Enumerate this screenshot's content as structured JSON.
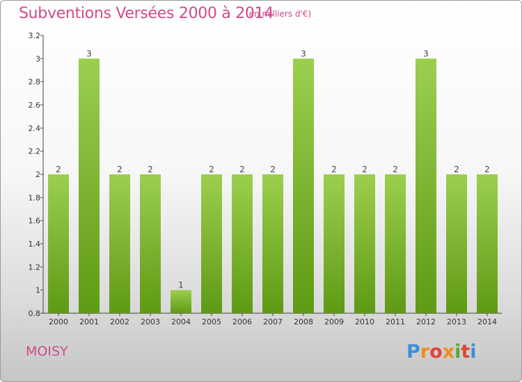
{
  "header": {
    "title": "Subventions Versées 2000 à 2014",
    "unit": "(en milliers d'€)"
  },
  "footer": {
    "city": "MOISY",
    "logo_text": "Proxiti"
  },
  "colors": {
    "title": "#d04a8a",
    "bar_top": "#9ccf4f",
    "bar_bottom": "#5e9a14"
  },
  "chart_data": {
    "type": "bar",
    "title": "Subventions Versées 2000 à 2014",
    "subtitle": "(en milliers d'€)",
    "categories": [
      "2000",
      "2001",
      "2002",
      "2003",
      "2004",
      "2005",
      "2006",
      "2007",
      "2008",
      "2009",
      "2010",
      "2011",
      "2012",
      "2013",
      "2014"
    ],
    "values": [
      2,
      3,
      2,
      2,
      1,
      2,
      2,
      2,
      3,
      2,
      2,
      2,
      3,
      2,
      2
    ],
    "value_labels": [
      "2",
      "3",
      "2",
      "2",
      "1",
      "2",
      "2",
      "2",
      "3",
      "2",
      "2",
      "2",
      "3",
      "2",
      "2"
    ],
    "ylim": [
      0.8,
      3.2
    ],
    "yticks": [
      0.8,
      1,
      1.2,
      1.4,
      1.6,
      1.8,
      2,
      2.2,
      2.4,
      2.6,
      2.8,
      3,
      3.2
    ],
    "ytick_labels": [
      "0.8",
      "1",
      "1.2",
      "1.4",
      "1.6",
      "1.8",
      "2",
      "2.2",
      "2.4",
      "2.6",
      "2.8",
      "3",
      "3.2"
    ],
    "grid": false,
    "legend": "none"
  }
}
